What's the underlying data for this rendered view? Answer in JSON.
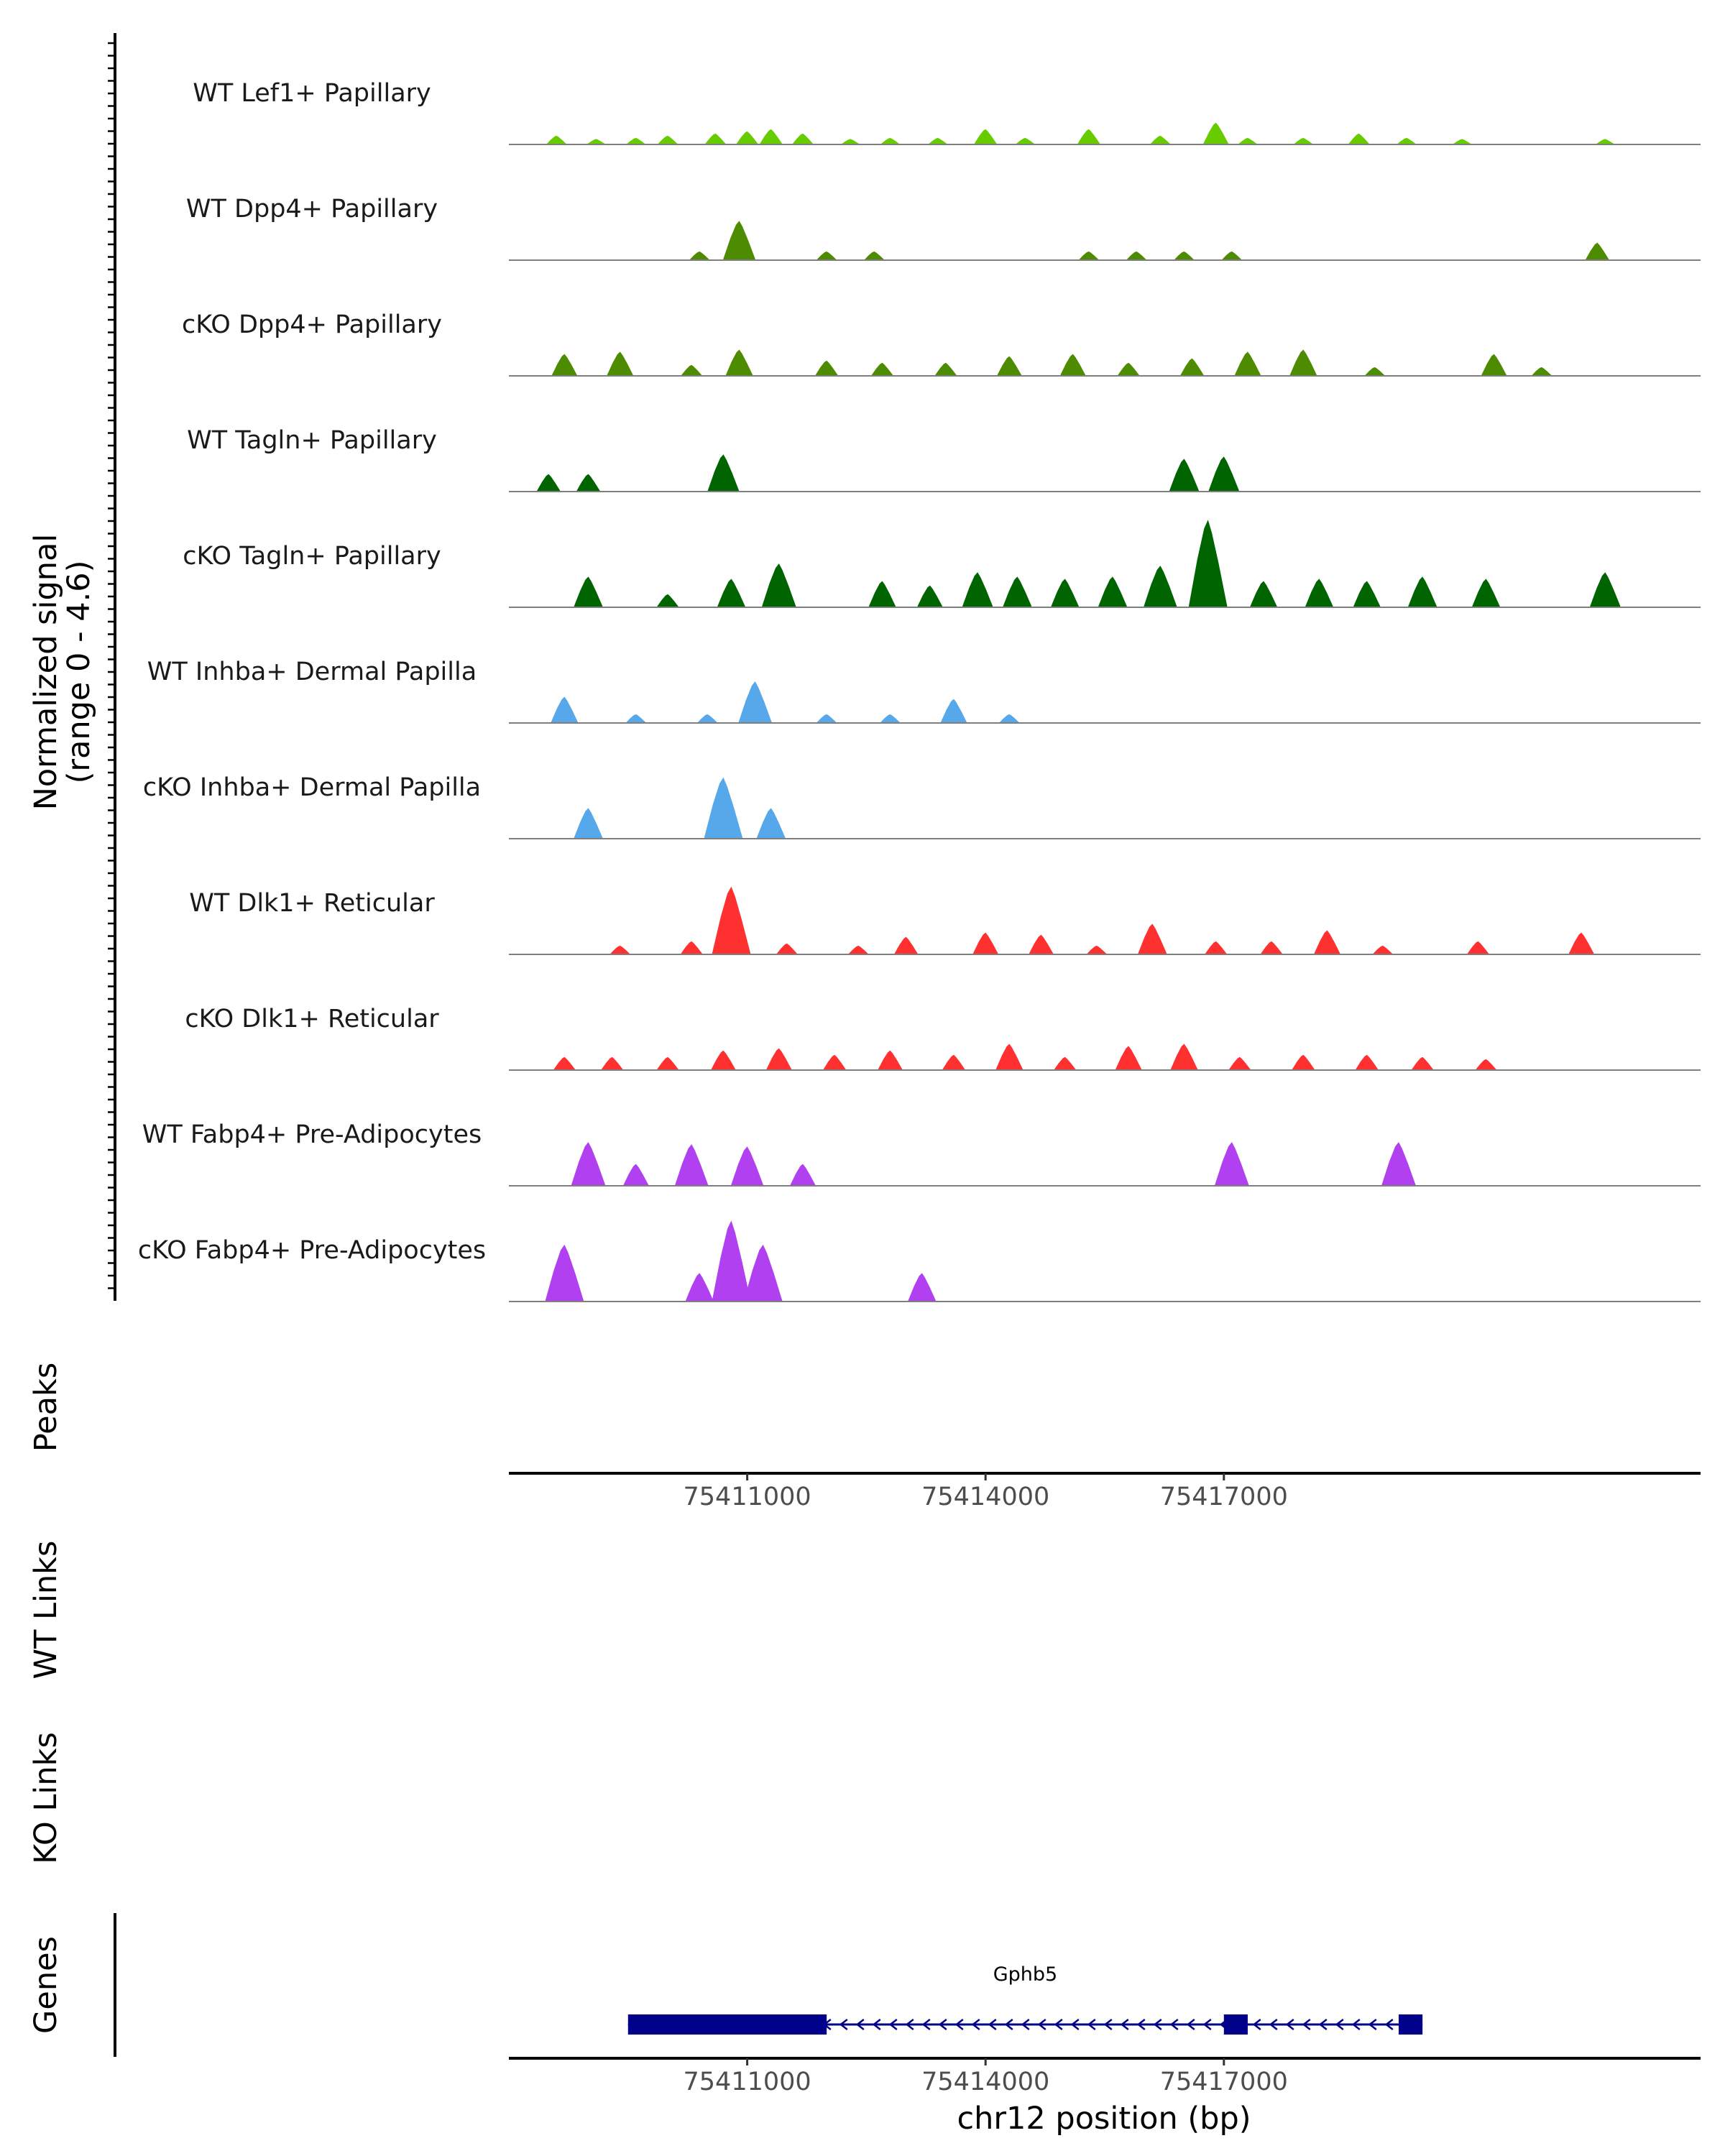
{
  "chart_data": {
    "type": "area",
    "y_axis_title": "Normalized signal",
    "y_axis_subtitle": "(range 0 - 4.6)",
    "ylim": [
      0,
      4.6
    ],
    "xlim": [
      75408000,
      75423000
    ],
    "xlabel": "chr12 position (bp)",
    "xticks": [
      75411000,
      75414000,
      75417000
    ],
    "tracks": [
      {
        "name": "WT Lef1+ Papillary",
        "color": "#66cc00",
        "peaks": [
          [
            75408600,
            0.4
          ],
          [
            75409100,
            0.25
          ],
          [
            75409600,
            0.3
          ],
          [
            75410000,
            0.4
          ],
          [
            75410600,
            0.5
          ],
          [
            75411000,
            0.6
          ],
          [
            75411300,
            0.7
          ],
          [
            75411700,
            0.5
          ],
          [
            75412300,
            0.25
          ],
          [
            75412800,
            0.3
          ],
          [
            75413400,
            0.3
          ],
          [
            75414000,
            0.7
          ],
          [
            75414500,
            0.3
          ],
          [
            75415300,
            0.7
          ],
          [
            75416200,
            0.4
          ],
          [
            75416900,
            1.0
          ],
          [
            75417300,
            0.3
          ],
          [
            75418000,
            0.3
          ],
          [
            75418700,
            0.5
          ],
          [
            75419300,
            0.3
          ],
          [
            75420000,
            0.25
          ],
          [
            75421800,
            0.25
          ]
        ]
      },
      {
        "name": "WT Dpp4+ Papillary",
        "color": "#4d8c00",
        "peaks": [
          [
            75410400,
            0.4
          ],
          [
            75410900,
            1.8
          ],
          [
            75412000,
            0.4
          ],
          [
            75412600,
            0.4
          ],
          [
            75415300,
            0.4
          ],
          [
            75415900,
            0.4
          ],
          [
            75416500,
            0.4
          ],
          [
            75417100,
            0.4
          ],
          [
            75421700,
            0.8
          ]
        ]
      },
      {
        "name": "cKO Dpp4+ Papillary",
        "color": "#4d8c00",
        "peaks": [
          [
            75408700,
            1.0
          ],
          [
            75409400,
            1.1
          ],
          [
            75410300,
            0.5
          ],
          [
            75410900,
            1.2
          ],
          [
            75412000,
            0.7
          ],
          [
            75412700,
            0.6
          ],
          [
            75413500,
            0.6
          ],
          [
            75414300,
            0.9
          ],
          [
            75415100,
            1.0
          ],
          [
            75415800,
            0.6
          ],
          [
            75416600,
            0.8
          ],
          [
            75417300,
            1.1
          ],
          [
            75418000,
            1.2
          ],
          [
            75418900,
            0.4
          ],
          [
            75420400,
            1.0
          ],
          [
            75421000,
            0.4
          ]
        ]
      },
      {
        "name": "WT Tagln+ Papillary",
        "color": "#006400",
        "peaks": [
          [
            75408500,
            0.8
          ],
          [
            75409000,
            0.8
          ],
          [
            75410700,
            1.7
          ],
          [
            75416500,
            1.5
          ],
          [
            75417000,
            1.6
          ]
        ]
      },
      {
        "name": "cKO Tagln+ Papillary",
        "color": "#006400",
        "peaks": [
          [
            75409000,
            1.4
          ],
          [
            75410000,
            0.6
          ],
          [
            75410800,
            1.3
          ],
          [
            75411400,
            2.0
          ],
          [
            75412700,
            1.2
          ],
          [
            75413300,
            1.0
          ],
          [
            75413900,
            1.6
          ],
          [
            75414400,
            1.4
          ],
          [
            75415000,
            1.3
          ],
          [
            75415600,
            1.4
          ],
          [
            75416200,
            1.9
          ],
          [
            75416800,
            4.0
          ],
          [
            75417500,
            1.2
          ],
          [
            75418200,
            1.3
          ],
          [
            75418800,
            1.2
          ],
          [
            75419500,
            1.4
          ],
          [
            75420300,
            1.3
          ],
          [
            75421800,
            1.6
          ]
        ]
      },
      {
        "name": "WT Inhba+ Dermal Papilla",
        "color": "#56a8ea",
        "peaks": [
          [
            75408700,
            1.2
          ],
          [
            75409600,
            0.4
          ],
          [
            75410500,
            0.4
          ],
          [
            75411100,
            1.9
          ],
          [
            75412000,
            0.4
          ],
          [
            75412800,
            0.4
          ],
          [
            75413600,
            1.1
          ],
          [
            75414300,
            0.4
          ]
        ]
      },
      {
        "name": "cKO Inhba+ Dermal Papilla",
        "color": "#56a8ea",
        "peaks": [
          [
            75409000,
            1.4
          ],
          [
            75410700,
            2.8
          ],
          [
            75411300,
            1.4
          ]
        ]
      },
      {
        "name": "WT Dlk1+ Reticular",
        "color": "#ff3030",
        "peaks": [
          [
            75409400,
            0.4
          ],
          [
            75410300,
            0.6
          ],
          [
            75410800,
            3.1
          ],
          [
            75411500,
            0.5
          ],
          [
            75412400,
            0.4
          ],
          [
            75413000,
            0.8
          ],
          [
            75414000,
            1.0
          ],
          [
            75414700,
            0.9
          ],
          [
            75415400,
            0.4
          ],
          [
            75416100,
            1.4
          ],
          [
            75416900,
            0.6
          ],
          [
            75417600,
            0.6
          ],
          [
            75418300,
            1.1
          ],
          [
            75419000,
            0.4
          ],
          [
            75420200,
            0.6
          ],
          [
            75421500,
            1.0
          ]
        ]
      },
      {
        "name": "cKO Dlk1+ Reticular",
        "color": "#ff3030",
        "peaks": [
          [
            75408700,
            0.6
          ],
          [
            75409300,
            0.6
          ],
          [
            75410000,
            0.6
          ],
          [
            75410700,
            0.9
          ],
          [
            75411400,
            1.0
          ],
          [
            75412100,
            0.7
          ],
          [
            75412800,
            0.9
          ],
          [
            75413600,
            0.7
          ],
          [
            75414300,
            1.2
          ],
          [
            75415000,
            0.6
          ],
          [
            75415800,
            1.1
          ],
          [
            75416500,
            1.2
          ],
          [
            75417200,
            0.6
          ],
          [
            75418000,
            0.7
          ],
          [
            75418800,
            0.7
          ],
          [
            75419500,
            0.6
          ],
          [
            75420300,
            0.5
          ]
        ]
      },
      {
        "name": "WT Fabp4+ Pre-Adipocytes",
        "color": "#b040f0",
        "peaks": [
          [
            75409000,
            2.0
          ],
          [
            75409600,
            1.0
          ],
          [
            75410300,
            1.9
          ],
          [
            75411000,
            1.8
          ],
          [
            75411700,
            1.0
          ],
          [
            75417100,
            2.0
          ],
          [
            75419200,
            2.0
          ]
        ]
      },
      {
        "name": "cKO Fabp4+ Pre-Adipocytes",
        "color": "#b040f0",
        "peaks": [
          [
            75408700,
            2.6
          ],
          [
            75410400,
            1.3
          ],
          [
            75410800,
            3.7
          ],
          [
            75411200,
            2.6
          ],
          [
            75413200,
            1.3
          ]
        ]
      }
    ],
    "panels": [
      "Peaks",
      "WT Links",
      "KO Links",
      "Genes"
    ],
    "genes": [
      {
        "name": "Gphb5",
        "start": 75409500,
        "end": 75419500,
        "strand": "-",
        "exons": [
          [
            75409500,
            75412000
          ],
          [
            75417000,
            75417300
          ],
          [
            75419200,
            75419500
          ]
        ]
      }
    ]
  }
}
